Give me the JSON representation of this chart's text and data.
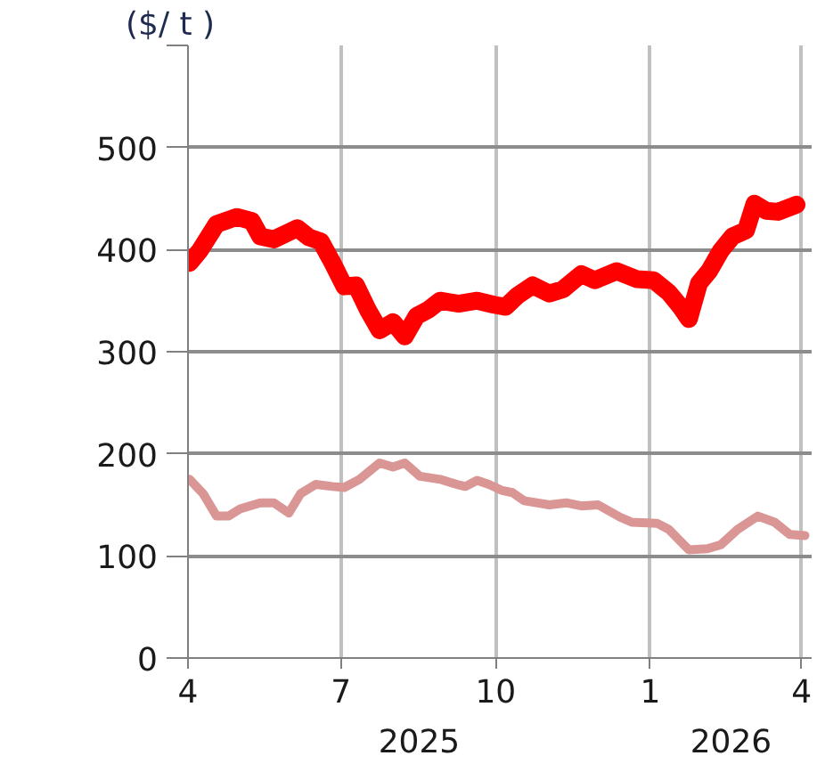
{
  "chart_data": {
    "type": "line",
    "ylabel": "($/ t )",
    "xlim": [
      "2025-04-01",
      "2026-04-07"
    ],
    "xticks": [
      {
        "value": "2025-04-01",
        "label": "4"
      },
      {
        "value": "2025-07-01",
        "label": "7"
      },
      {
        "value": "2025-10-01",
        "label": "10"
      },
      {
        "value": "2026-01-01",
        "label": "1"
      },
      {
        "value": "2026-04-01",
        "label": "4"
      }
    ],
    "ylim": [
      0,
      600
    ],
    "yticks": [
      0,
      100,
      200,
      300,
      400,
      500,
      {
        "value": 600,
        "label": null
      }
    ],
    "grid": true,
    "annotations": [
      "2025",
      "2026"
    ],
    "series": [
      {
        "color": "#ff0000",
        "x": [
          "2025-04-02",
          "2025-04-08",
          "2025-04-18",
          "2025-04-30",
          "2025-05-09",
          "2025-05-14",
          "2025-05-22",
          "2025-06-05",
          "2025-06-12",
          "2025-06-19",
          "2025-06-26",
          "2025-07-03",
          "2025-07-10",
          "2025-07-17",
          "2025-07-24",
          "2025-08-01",
          "2025-08-08",
          "2025-08-15",
          "2025-08-22",
          "2025-08-29",
          "2025-09-09",
          "2025-09-20",
          "2025-09-30",
          "2025-10-07",
          "2025-10-14",
          "2025-10-23",
          "2025-11-02",
          "2025-11-10",
          "2025-11-21",
          "2025-11-29",
          "2025-12-12",
          "2025-12-24",
          "2026-01-03",
          "2026-01-12",
          "2026-01-19",
          "2026-01-24",
          "2026-01-30",
          "2026-02-05",
          "2026-02-12",
          "2026-02-19",
          "2026-02-27",
          "2026-03-04",
          "2026-03-11",
          "2026-03-18",
          "2026-03-29"
        ],
        "values": [
          387,
          399,
          425,
          432,
          428,
          413,
          410,
          421,
          412,
          408,
          387,
          364,
          365,
          341,
          321,
          329,
          315,
          335,
          341,
          350,
          347,
          350,
          346,
          344,
          355,
          365,
          357,
          361,
          376,
          370,
          379,
          371,
          370,
          358,
          344,
          332,
          367,
          379,
          399,
          413,
          419,
          445,
          438,
          437,
          444
        ]
      },
      {
        "color": "#d99694",
        "x": [
          "2025-04-02",
          "2025-04-10",
          "2025-04-18",
          "2025-04-25",
          "2025-05-02",
          "2025-05-14",
          "2025-05-22",
          "2025-05-31",
          "2025-06-07",
          "2025-06-16",
          "2025-06-26",
          "2025-07-03",
          "2025-07-12",
          "2025-07-24",
          "2025-08-01",
          "2025-08-08",
          "2025-08-17",
          "2025-08-29",
          "2025-09-08",
          "2025-09-13",
          "2025-09-20",
          "2025-09-27",
          "2025-10-05",
          "2025-10-11",
          "2025-10-18",
          "2025-11-02",
          "2025-11-12",
          "2025-11-21",
          "2025-12-01",
          "2025-12-14",
          "2025-12-21",
          "2026-01-05",
          "2026-01-12",
          "2026-01-24",
          "2026-02-04",
          "2026-02-12",
          "2026-02-22",
          "2026-03-06",
          "2026-03-16",
          "2026-03-25",
          "2026-04-03"
        ],
        "values": [
          175,
          161,
          139,
          139,
          146,
          152,
          152,
          142,
          161,
          170,
          168,
          167,
          175,
          191,
          187,
          191,
          178,
          175,
          170,
          168,
          174,
          170,
          164,
          162,
          154,
          150,
          152,
          149,
          150,
          138,
          133,
          132,
          126,
          106,
          107,
          111,
          126,
          139,
          133,
          121,
          120
        ]
      }
    ]
  }
}
